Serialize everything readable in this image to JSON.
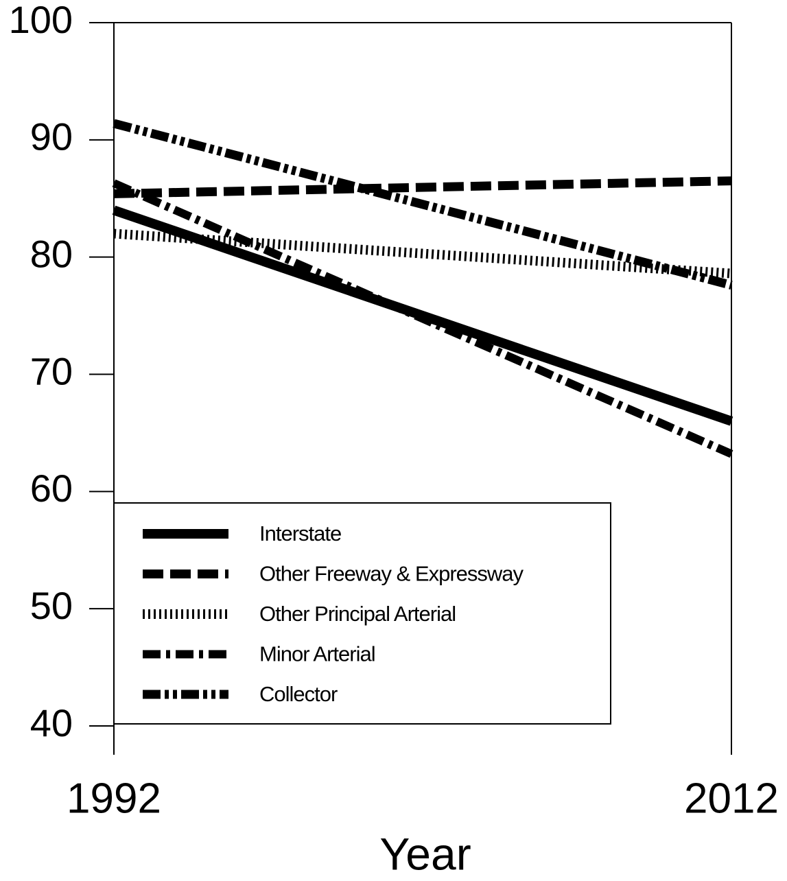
{
  "chart_data": {
    "type": "line",
    "x_label": "Year",
    "x": [
      1992,
      2012
    ],
    "xlim": [
      1992,
      2012
    ],
    "xticks": [
      1992,
      2012
    ],
    "ylim": [
      40,
      100
    ],
    "yticks": [
      40,
      50,
      60,
      70,
      80,
      90,
      100
    ],
    "legend": "lower left",
    "series": [
      {
        "name": "Interstate",
        "color": "#000000",
        "values": [
          84.0,
          66.0
        ]
      },
      {
        "name": "Other Freeway & Expressway",
        "color": "#000000",
        "values": [
          85.4,
          86.5
        ]
      },
      {
        "name": "Other Principal Arterial",
        "color": "#000000",
        "values": [
          82.0,
          78.6
        ]
      },
      {
        "name": "Minor Arterial",
        "color": "#000000",
        "values": [
          86.3,
          63.2
        ]
      },
      {
        "name": "Collector",
        "color": "#000000",
        "values": [
          91.4,
          77.6
        ]
      }
    ]
  }
}
